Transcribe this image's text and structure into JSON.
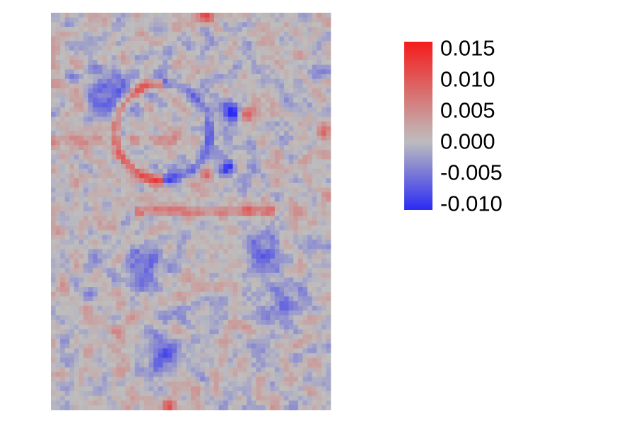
{
  "chart_data": {
    "type": "heatmap",
    "title": "",
    "xlabel": "",
    "ylabel": "",
    "grid": false,
    "legend": {
      "type": "colorbar",
      "placement": "right",
      "range": [
        -0.011,
        0.016
      ],
      "ticks": [
        0.015,
        0.01,
        0.005,
        0.0,
        -0.005,
        -0.01
      ],
      "tick_labels": [
        "0.015",
        "0.010",
        "0.005",
        "0.000",
        "-0.005",
        "-0.010"
      ],
      "colors": {
        "low": "#2b2bf5",
        "mid": "#bebebe",
        "high": "#f51b1b"
      }
    },
    "grid_size": {
      "rows": 84,
      "cols": 60
    },
    "pattern_note_values": {
      "background_mean": 0.0,
      "features": [
        {
          "kind": "ring_pos",
          "cx": 0.4,
          "cy": 0.3,
          "r": 0.17,
          "amp": 0.009
        },
        {
          "kind": "spot",
          "cx": 0.65,
          "cy": 0.25,
          "s": 0.025,
          "amp": -0.011
        },
        {
          "kind": "spot",
          "cx": 0.7,
          "cy": 0.25,
          "s": 0.02,
          "amp": 0.012
        },
        {
          "kind": "spot",
          "cx": 0.63,
          "cy": 0.39,
          "s": 0.02,
          "amp": -0.011
        },
        {
          "kind": "spot",
          "cx": 0.56,
          "cy": 0.41,
          "s": 0.02,
          "amp": 0.01
        },
        {
          "kind": "spot",
          "cx": 0.55,
          "cy": 0.005,
          "s": 0.02,
          "amp": 0.014
        },
        {
          "kind": "spot",
          "cx": 0.42,
          "cy": 0.99,
          "s": 0.02,
          "amp": 0.012
        },
        {
          "kind": "spot",
          "cx": 0.98,
          "cy": 0.3,
          "s": 0.02,
          "amp": 0.01
        },
        {
          "kind": "band",
          "y": 0.5,
          "x0": 0.3,
          "x1": 0.8,
          "amp": 0.007
        },
        {
          "kind": "band",
          "y": 0.32,
          "x0": 0.0,
          "x1": 0.45,
          "amp": 0.004
        },
        {
          "kind": "blob",
          "cx": 0.22,
          "cy": 0.2,
          "s": 0.06,
          "amp": -0.006
        },
        {
          "kind": "blob",
          "cx": 0.35,
          "cy": 0.63,
          "s": 0.05,
          "amp": -0.006
        },
        {
          "kind": "blob",
          "cx": 0.75,
          "cy": 0.6,
          "s": 0.05,
          "amp": -0.005
        },
        {
          "kind": "blob",
          "cx": 0.4,
          "cy": 0.85,
          "s": 0.05,
          "amp": -0.006
        },
        {
          "kind": "blob",
          "cx": 0.25,
          "cy": 0.82,
          "s": 0.05,
          "amp": 0.004
        },
        {
          "kind": "blob",
          "cx": 0.85,
          "cy": 0.72,
          "s": 0.05,
          "amp": -0.005
        }
      ]
    }
  }
}
